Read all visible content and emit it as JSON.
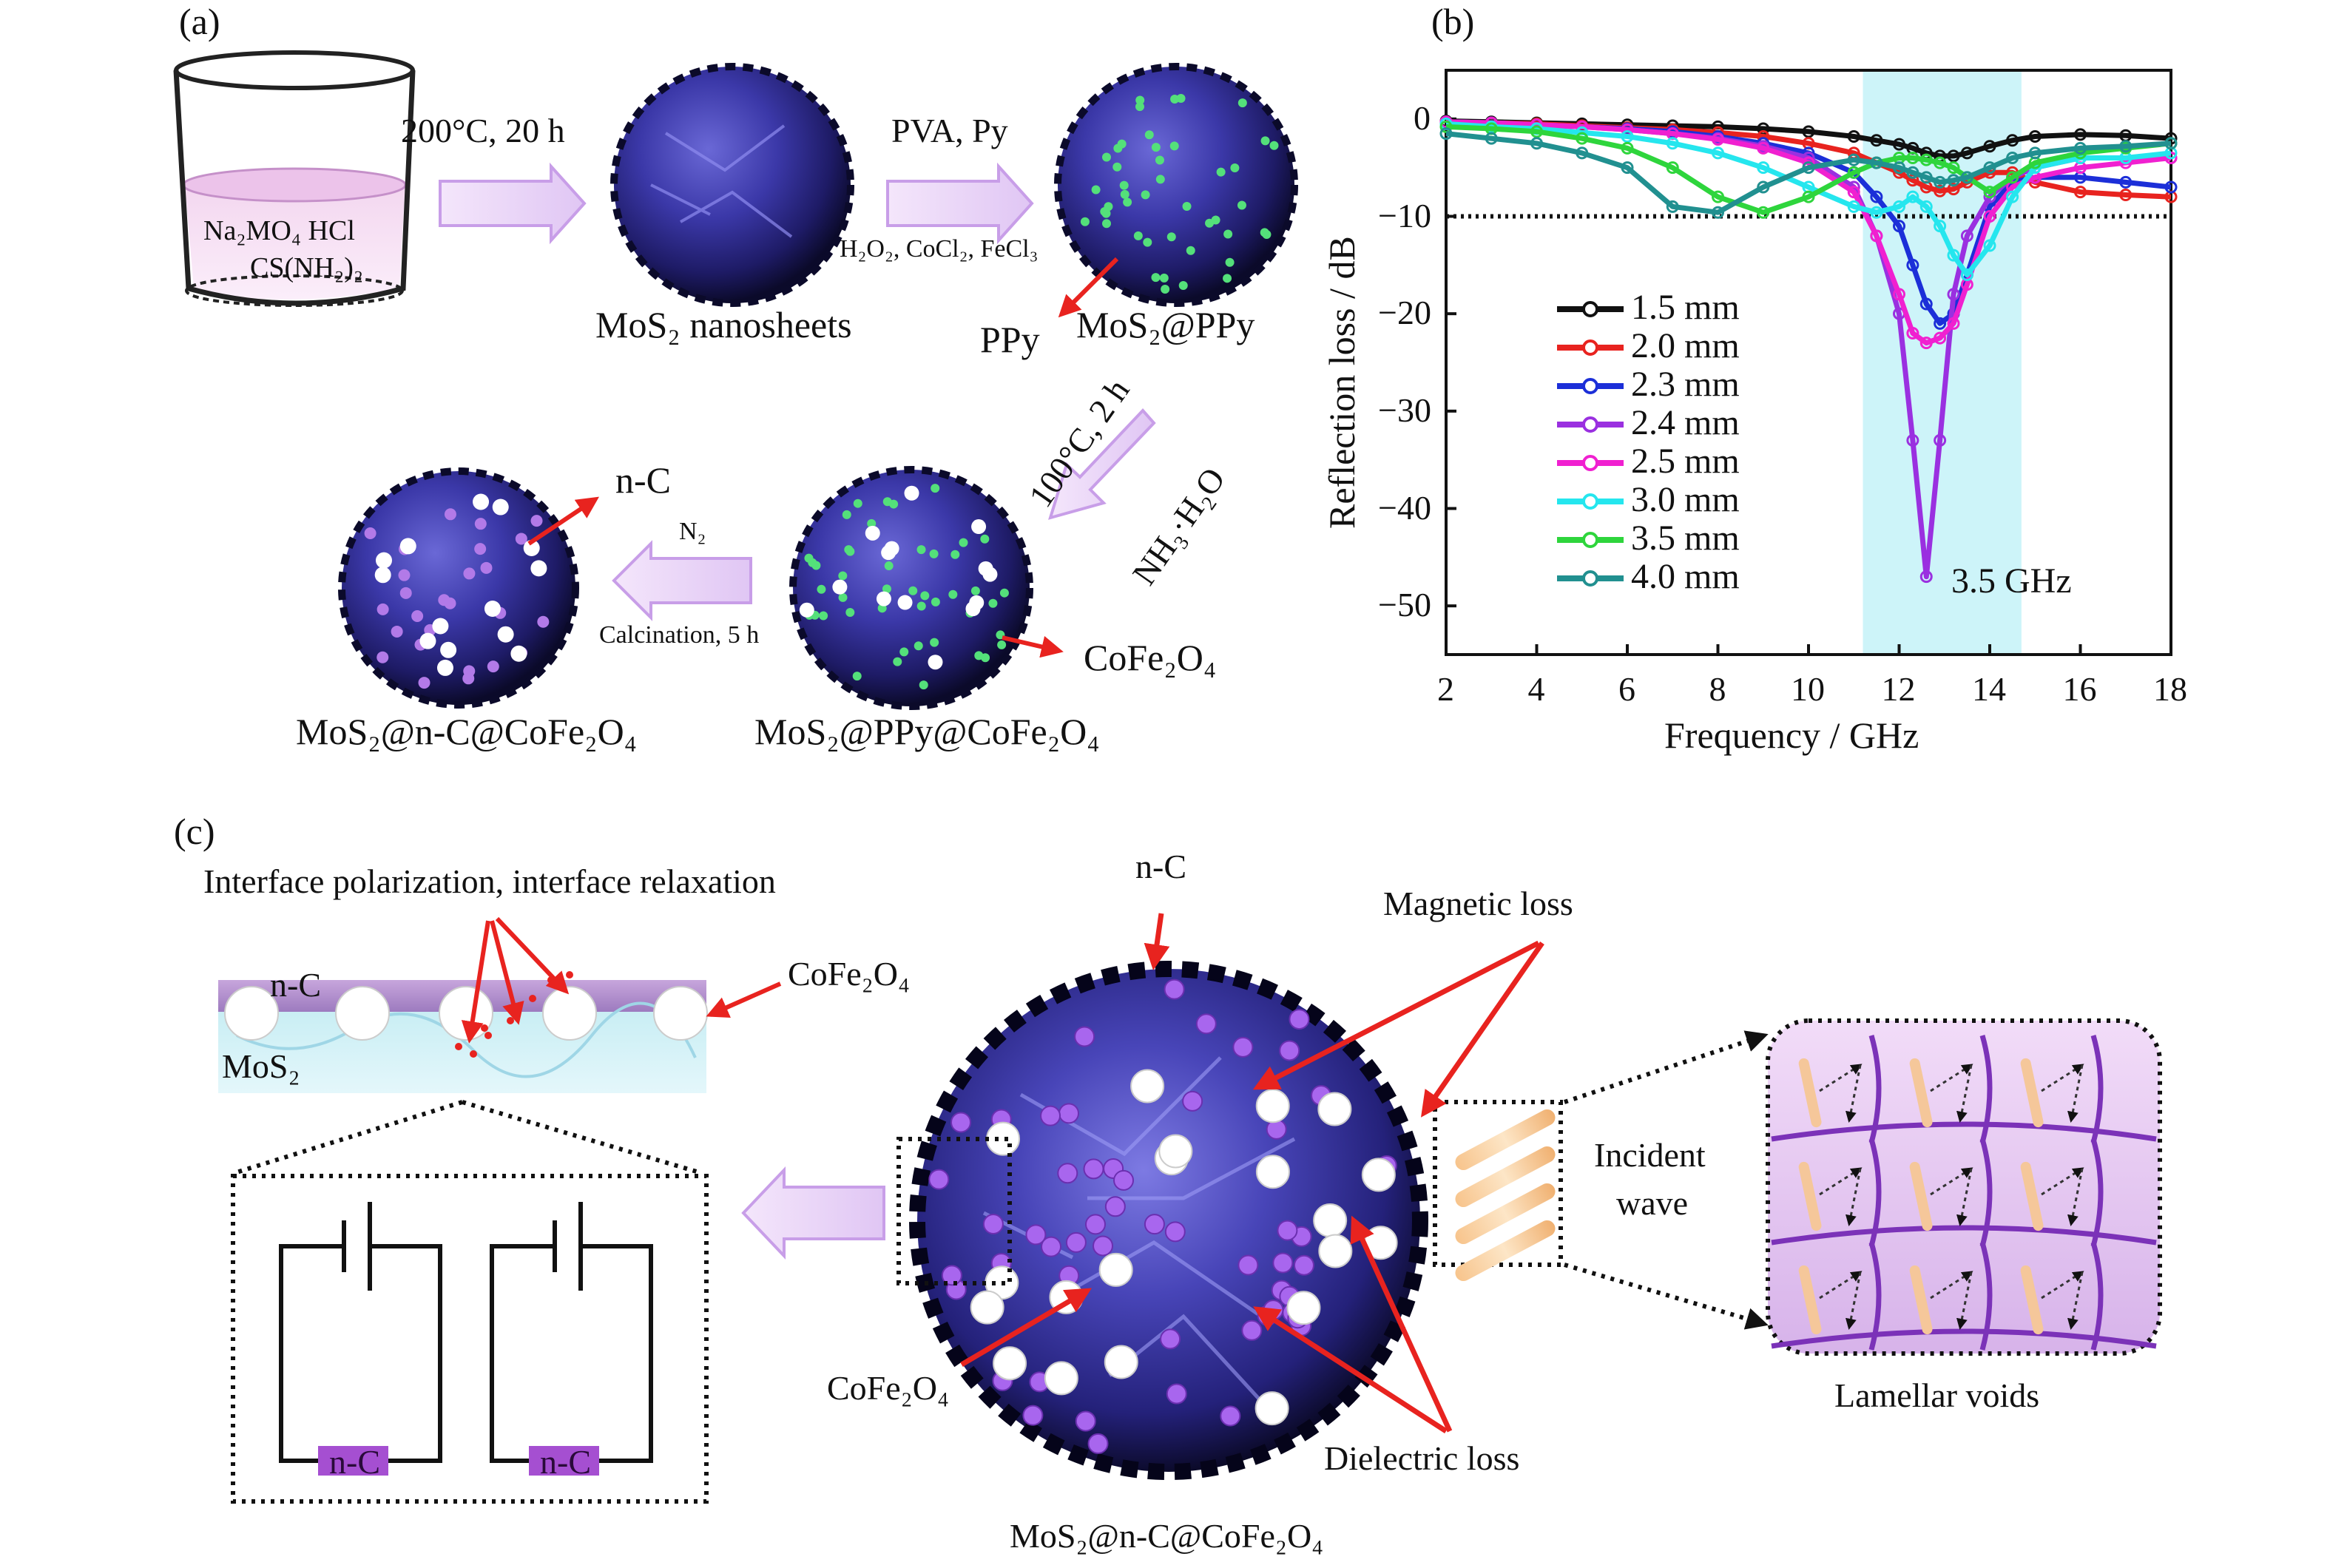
{
  "panel_a": {
    "letter": "(a)",
    "beaker_line1": "Na₂MO₄  HCl",
    "beaker_line2": "CS(NH₂)₂",
    "step1_condition": "200°C, 20 h",
    "step2_condition_top": "PVA, Py",
    "step2_condition_bottom": "H₂O₂, CoCl₂, FeCl₃",
    "product1": "MoS₂ nanosheets",
    "product2": "MoS₂@PPy",
    "ppy_label": "PPy",
    "step3_condition_top": "100°C, 2 h",
    "step3_condition_bottom": "NH₃·H₂O",
    "product3": "MoS₂@PPy@CoFe₂O₄",
    "cofe_label": "CoFe₂O₄",
    "step4_condition_top": "N₂",
    "step4_condition_bottom": "Calcination, 5 h",
    "product4": "MoS₂@n-C@CoFe₂O₄",
    "nc_label": "n-C"
  },
  "panel_b": {
    "letter": "(b)",
    "annotation": "3.5 GHz"
  },
  "chart_data": {
    "type": "line",
    "title": "",
    "xlabel": "Frequency / GHz",
    "ylabel": "Reflection loss / dB",
    "xlim": [
      2,
      18
    ],
    "ylim": [
      -55,
      5
    ],
    "xticks": [
      2,
      4,
      6,
      8,
      10,
      12,
      14,
      16,
      18
    ],
    "yticks": [
      0,
      -10,
      -20,
      -30,
      -40,
      -50
    ],
    "reference_line": -10,
    "shaded_band_x": [
      11.2,
      14.7
    ],
    "x": [
      2,
      3,
      4,
      5,
      6,
      7,
      8,
      9,
      10,
      11,
      11.5,
      12,
      12.3,
      12.6,
      12.9,
      13.2,
      13.5,
      14,
      14.5,
      15,
      16,
      17,
      18
    ],
    "series": [
      {
        "name": "1.5 mm",
        "color": "#111111",
        "values": [
          -0.2,
          -0.3,
          -0.4,
          -0.5,
          -0.6,
          -0.7,
          -0.8,
          -1,
          -1.3,
          -1.8,
          -2.2,
          -2.6,
          -3,
          -3.5,
          -3.8,
          -3.8,
          -3.5,
          -2.8,
          -2.2,
          -1.8,
          -1.6,
          -1.7,
          -2
        ]
      },
      {
        "name": "2.0 mm",
        "color": "#e8231f",
        "values": [
          -0.3,
          -0.4,
          -0.5,
          -0.7,
          -0.9,
          -1.1,
          -1.4,
          -1.8,
          -2.5,
          -3.5,
          -4.5,
          -5.5,
          -6.3,
          -7,
          -7.4,
          -7.2,
          -6.5,
          -5.5,
          -5.5,
          -6.5,
          -7.5,
          -7.8,
          -8
        ]
      },
      {
        "name": "2.3 mm",
        "color": "#1c2fd8",
        "values": [
          -0.3,
          -0.4,
          -0.6,
          -0.8,
          -1,
          -1.3,
          -1.8,
          -2.5,
          -3.5,
          -5.5,
          -8,
          -11,
          -15,
          -19,
          -21,
          -20,
          -16,
          -9,
          -6.5,
          -6,
          -6,
          -6.5,
          -7
        ]
      },
      {
        "name": "2.4 mm",
        "color": "#9a30e0",
        "values": [
          -0.3,
          -0.4,
          -0.6,
          -0.8,
          -1.1,
          -1.5,
          -2,
          -2.8,
          -4,
          -7,
          -12,
          -20,
          -33,
          -47,
          -33,
          -18,
          -12,
          -8,
          -6,
          -5,
          -4,
          -4,
          -4
        ]
      },
      {
        "name": "2.5 mm",
        "color": "#f020d0",
        "values": [
          -0.3,
          -0.4,
          -0.6,
          -0.8,
          -1.1,
          -1.5,
          -2.1,
          -3,
          -4.5,
          -7.5,
          -12,
          -18,
          -22,
          -23,
          -22.5,
          -21,
          -17,
          -10,
          -7,
          -6,
          -5,
          -4.5,
          -4
        ]
      },
      {
        "name": "3.0 mm",
        "color": "#25e6ee",
        "values": [
          -0.5,
          -0.8,
          -1,
          -1.4,
          -1.8,
          -2.5,
          -3.5,
          -5,
          -7,
          -9,
          -9.6,
          -9,
          -8,
          -9,
          -11,
          -14,
          -16,
          -13,
          -8,
          -5,
          -4,
          -4,
          -3.5
        ]
      },
      {
        "name": "3.5 mm",
        "color": "#2ed53c",
        "values": [
          -0.8,
          -1,
          -1.3,
          -2,
          -3,
          -5,
          -8,
          -9.6,
          -8,
          -5.5,
          -4.5,
          -4,
          -4,
          -4.2,
          -4.5,
          -5,
          -6,
          -7.5,
          -6,
          -4.5,
          -3.5,
          -3,
          -2.5
        ]
      },
      {
        "name": "4.0 mm",
        "color": "#219090",
        "values": [
          -1.5,
          -2,
          -2.5,
          -3.5,
          -5,
          -9,
          -9.6,
          -7,
          -5,
          -4.2,
          -4.5,
          -5,
          -5.5,
          -6,
          -6.5,
          -6.3,
          -6,
          -5,
          -4,
          -3.5,
          -3,
          -2.8,
          -2.5
        ]
      }
    ]
  },
  "panel_c": {
    "letter": "(c)",
    "interface_caption": "Interface polarization, interface relaxation",
    "nc_layer": "n-C",
    "mos2_layer": "MoS₂",
    "cofe_right": "CoFe₂O₄",
    "circuit_nc_1": "n-C",
    "circuit_nc_2": "n-C",
    "nc_top": "n-C",
    "magnetic_loss": "Magnetic loss",
    "incident_wave_1": "Incident",
    "incident_wave_2": "wave",
    "cofe_left": "CoFe₂O₄",
    "dielectric_loss": "Dielectric loss",
    "lamellar_voids": "Lamellar voids",
    "composite_name": "MoS₂@n-C@CoFe₂O₄"
  }
}
